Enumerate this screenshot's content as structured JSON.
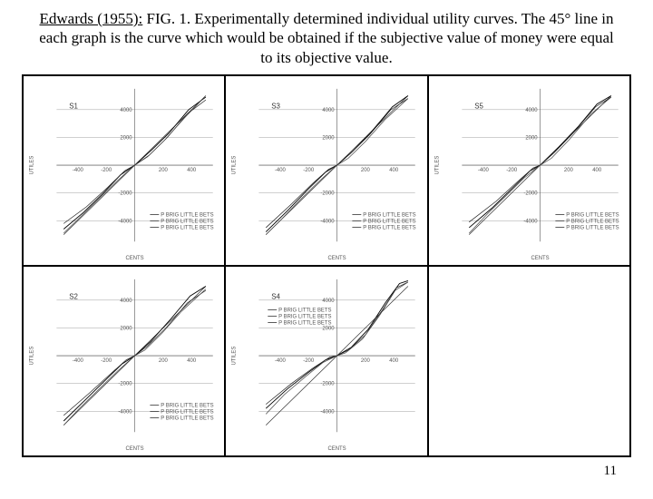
{
  "title": {
    "cite": "Edwards (1955):",
    "rest": " FIG. 1. Experimentally determined individual utility curves. The 45° line in each graph is the curve which would be obtained if the subjective value of money were equal to its objective value."
  },
  "page_number": "11",
  "common": {
    "x_label": "CENTS",
    "y_label": "UTILES",
    "x_ticks": [
      -400,
      -200,
      0,
      200,
      400
    ],
    "y_ticks": [
      -4000,
      -2000,
      0,
      2000,
      4000
    ],
    "xlim": [
      -550,
      550
    ],
    "ylim": [
      -5500,
      5500
    ],
    "colors": {
      "background": "#ffffff",
      "axis": "#555555",
      "grid": "#888888",
      "curve_main": "#000000",
      "curve_alt": "#444444",
      "reference_line": "#333333",
      "text": "#555555"
    },
    "legend": [
      "P BRIG LITTLE BETS",
      "P BRIG LITTLE BETS",
      "P BRIG LITTLE BETS"
    ],
    "legend_position": "bottom-right-inner"
  },
  "panels": [
    {
      "id": "S1",
      "ref_line": [
        [
          -500,
          -5000
        ],
        [
          500,
          5000
        ]
      ],
      "curves": [
        [
          [
            -500,
            -4600
          ],
          [
            -360,
            -3400
          ],
          [
            -220,
            -2000
          ],
          [
            -100,
            -700
          ],
          [
            0,
            0
          ],
          [
            120,
            1100
          ],
          [
            240,
            2300
          ],
          [
            380,
            4000
          ],
          [
            500,
            4900
          ]
        ],
        [
          [
            -500,
            -4200
          ],
          [
            -340,
            -3000
          ],
          [
            -190,
            -1600
          ],
          [
            -70,
            -400
          ],
          [
            0,
            0
          ],
          [
            100,
            700
          ],
          [
            230,
            2000
          ],
          [
            370,
            3700
          ],
          [
            500,
            4700
          ]
        ],
        [
          [
            -500,
            -4900
          ],
          [
            -380,
            -3700
          ],
          [
            -240,
            -2300
          ],
          [
            -120,
            -1100
          ],
          [
            0,
            0
          ],
          [
            90,
            600
          ],
          [
            210,
            1800
          ],
          [
            350,
            3400
          ],
          [
            500,
            5000
          ]
        ]
      ]
    },
    {
      "id": "S3",
      "ref_line": [
        [
          -500,
          -5000
        ],
        [
          500,
          5000
        ]
      ],
      "curves": [
        [
          [
            -500,
            -4800
          ],
          [
            -350,
            -3300
          ],
          [
            -200,
            -1700
          ],
          [
            -80,
            -500
          ],
          [
            0,
            0
          ],
          [
            110,
            1000
          ],
          [
            250,
            2500
          ],
          [
            390,
            4200
          ],
          [
            500,
            5000
          ]
        ],
        [
          [
            -500,
            -4500
          ],
          [
            -320,
            -2800
          ],
          [
            -170,
            -1300
          ],
          [
            -60,
            -300
          ],
          [
            0,
            0
          ],
          [
            90,
            800
          ],
          [
            230,
            2200
          ],
          [
            380,
            4000
          ],
          [
            500,
            4800
          ]
        ],
        [
          [
            -500,
            -5000
          ],
          [
            -400,
            -4000
          ],
          [
            -260,
            -2500
          ],
          [
            -130,
            -1200
          ],
          [
            0,
            0
          ],
          [
            80,
            500
          ],
          [
            200,
            1700
          ],
          [
            340,
            3300
          ],
          [
            500,
            4800
          ]
        ]
      ]
    },
    {
      "id": "S5",
      "ref_line": [
        [
          -500,
          -5000
        ],
        [
          500,
          5000
        ]
      ],
      "curves": [
        [
          [
            -500,
            -4500
          ],
          [
            -340,
            -3100
          ],
          [
            -190,
            -1600
          ],
          [
            -70,
            -400
          ],
          [
            0,
            0
          ],
          [
            130,
            1300
          ],
          [
            270,
            2800
          ],
          [
            400,
            4400
          ],
          [
            500,
            5000
          ]
        ],
        [
          [
            -500,
            -4100
          ],
          [
            -310,
            -2600
          ],
          [
            -160,
            -1200
          ],
          [
            -50,
            -200
          ],
          [
            0,
            0
          ],
          [
            100,
            900
          ],
          [
            240,
            2400
          ],
          [
            390,
            4200
          ],
          [
            500,
            4900
          ]
        ],
        [
          [
            -500,
            -4900
          ],
          [
            -370,
            -3500
          ],
          [
            -230,
            -2100
          ],
          [
            -110,
            -900
          ],
          [
            0,
            0
          ],
          [
            80,
            500
          ],
          [
            210,
            1900
          ],
          [
            360,
            3700
          ],
          [
            500,
            4900
          ]
        ]
      ]
    },
    {
      "id": "S2",
      "ref_line": [
        [
          -500,
          -5000
        ],
        [
          500,
          5000
        ]
      ],
      "curves": [
        [
          [
            -500,
            -4700
          ],
          [
            -350,
            -3200
          ],
          [
            -210,
            -1800
          ],
          [
            -90,
            -600
          ],
          [
            0,
            0
          ],
          [
            110,
            1000
          ],
          [
            250,
            2600
          ],
          [
            390,
            4300
          ],
          [
            500,
            5000
          ]
        ],
        [
          [
            -500,
            -4300
          ],
          [
            -320,
            -2700
          ],
          [
            -180,
            -1400
          ],
          [
            -60,
            -300
          ],
          [
            0,
            0
          ],
          [
            90,
            700
          ],
          [
            220,
            2000
          ],
          [
            370,
            3800
          ],
          [
            500,
            4700
          ]
        ],
        [
          [
            -500,
            -5000
          ],
          [
            -390,
            -3800
          ],
          [
            -250,
            -2400
          ],
          [
            -120,
            -1100
          ],
          [
            0,
            0
          ],
          [
            70,
            400
          ],
          [
            190,
            1600
          ],
          [
            330,
            3200
          ],
          [
            500,
            4800
          ]
        ]
      ]
    },
    {
      "id": "S4",
      "ref_line": [
        [
          -500,
          -5000
        ],
        [
          500,
          5000
        ]
      ],
      "legend_position": "top-left-inner",
      "curves": [
        [
          [
            -500,
            -3800
          ],
          [
            -350,
            -2400
          ],
          [
            -200,
            -1200
          ],
          [
            -80,
            -300
          ],
          [
            0,
            0
          ],
          [
            100,
            600
          ],
          [
            220,
            1900
          ],
          [
            340,
            3800
          ],
          [
            440,
            5200
          ],
          [
            500,
            5400
          ]
        ],
        [
          [
            -500,
            -3500
          ],
          [
            -320,
            -2000
          ],
          [
            -170,
            -900
          ],
          [
            -50,
            -100
          ],
          [
            0,
            0
          ],
          [
            80,
            400
          ],
          [
            200,
            1500
          ],
          [
            320,
            3300
          ],
          [
            420,
            4900
          ],
          [
            500,
            5300
          ]
        ],
        [
          [
            -500,
            -4200
          ],
          [
            -370,
            -2800
          ],
          [
            -220,
            -1500
          ],
          [
            -100,
            -500
          ],
          [
            0,
            0
          ],
          [
            60,
            200
          ],
          [
            180,
            1200
          ],
          [
            300,
            2900
          ],
          [
            410,
            4700
          ],
          [
            500,
            5300
          ]
        ]
      ]
    },
    {
      "id": "",
      "empty": true
    }
  ]
}
